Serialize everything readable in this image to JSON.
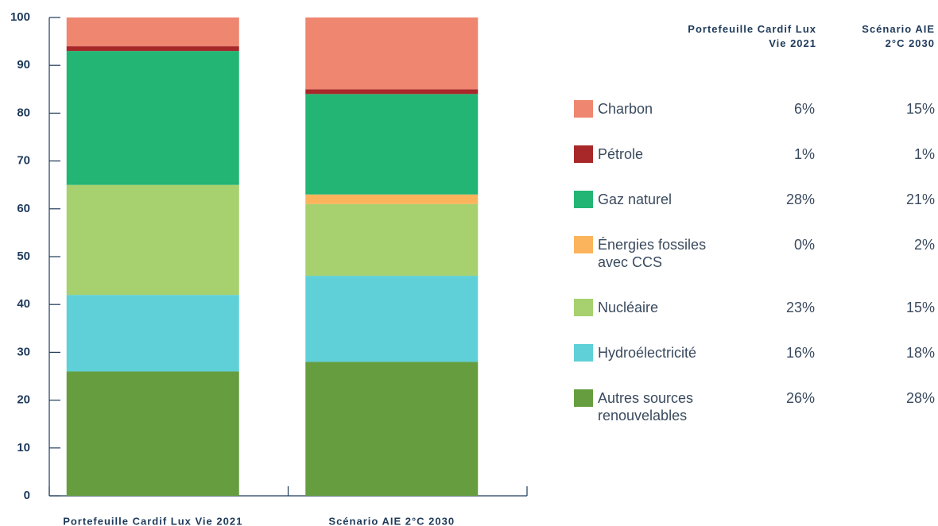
{
  "chart_data": {
    "type": "stacked_bar",
    "categories": [
      "Portefeuille Cardif Lux Vie 2021",
      "Scénario AIE 2°C 2030"
    ],
    "series": [
      {
        "name": "Charbon",
        "color": "#ee8670",
        "values": [
          6,
          15
        ],
        "value_labels": [
          "6%",
          "15%"
        ]
      },
      {
        "name": "Pétrole",
        "color": "#a8282a",
        "values": [
          1,
          1
        ],
        "value_labels": [
          "1%",
          "1%"
        ]
      },
      {
        "name": "Gaz naturel",
        "color": "#22b573",
        "values": [
          28,
          21
        ],
        "value_labels": [
          "28%",
          "21%"
        ]
      },
      {
        "name": "Énergies fossiles avec CCS",
        "color": "#fbb45c",
        "values": [
          0,
          2
        ],
        "value_labels": [
          "0%",
          "2%"
        ]
      },
      {
        "name": "Nucléaire",
        "color": "#a6d16e",
        "values": [
          23,
          15
        ],
        "value_labels": [
          "23%",
          "15%"
        ]
      },
      {
        "name": "Hydroélectricité",
        "color": "#5fd0d8",
        "values": [
          16,
          18
        ],
        "value_labels": [
          "16%",
          "18%"
        ]
      },
      {
        "name": "Autres sources renouvelables",
        "color": "#669e3f",
        "values": [
          26,
          28
        ],
        "value_labels": [
          "26%",
          "28%"
        ]
      }
    ],
    "ylim": [
      0,
      100
    ],
    "yticks": [
      0,
      10,
      20,
      30,
      40,
      50,
      60,
      70,
      80,
      90,
      100
    ],
    "grid": false
  }
}
